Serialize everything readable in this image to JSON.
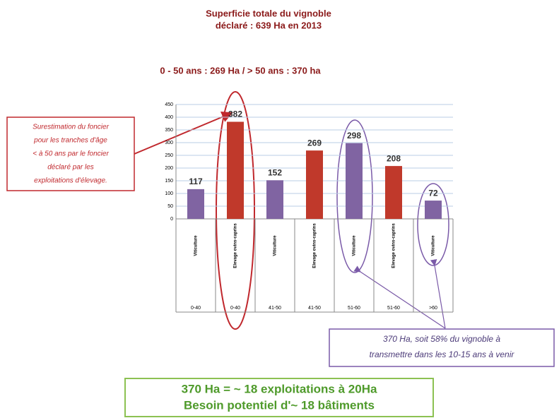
{
  "chart_data": {
    "type": "bar",
    "title": [
      "Superficie totale du vignoble",
      "déclaré : 639 Ha en 2013"
    ],
    "subtitle": "0 - 50 ans : 269 Ha  / > 50 ans : 370 ha",
    "categories": [
      "Viticulture",
      "Elevage ovins-caprins",
      "Viticulture",
      "Elevage ovins-caprins",
      "Viticulture",
      "Elevage ovins-caprins",
      "Viticulture"
    ],
    "groups": [
      "0-40",
      "0-40",
      "41-50",
      "41-50",
      "51-60",
      "51-60",
      ">60"
    ],
    "values": [
      117,
      382,
      152,
      269,
      298,
      208,
      72
    ],
    "colors": [
      "#8064a2",
      "#c0392b",
      "#8064a2",
      "#c0392b",
      "#8064a2",
      "#c0392b",
      "#8064a2"
    ],
    "ylim": [
      0,
      450
    ],
    "yticks": [
      0,
      50,
      100,
      150,
      200,
      250,
      300,
      350,
      400,
      450
    ],
    "grid": true,
    "annotations": {
      "left_note": [
        "Surestimation du foncier",
        "pour les tranches d'âge",
        "< à 50 ans par le foncier",
        "déclaré par les",
        "exploitations d'élevage."
      ],
      "right_note": [
        "370 Ha, soit 58% du vignoble à",
        "transmettre dans les 10-15 ans à venir"
      ],
      "bottom_note": [
        "370 Ha = ~ 18 exploitations à 20Ha",
        "Besoin potentiel d'~ 18 bâtiments"
      ]
    }
  }
}
